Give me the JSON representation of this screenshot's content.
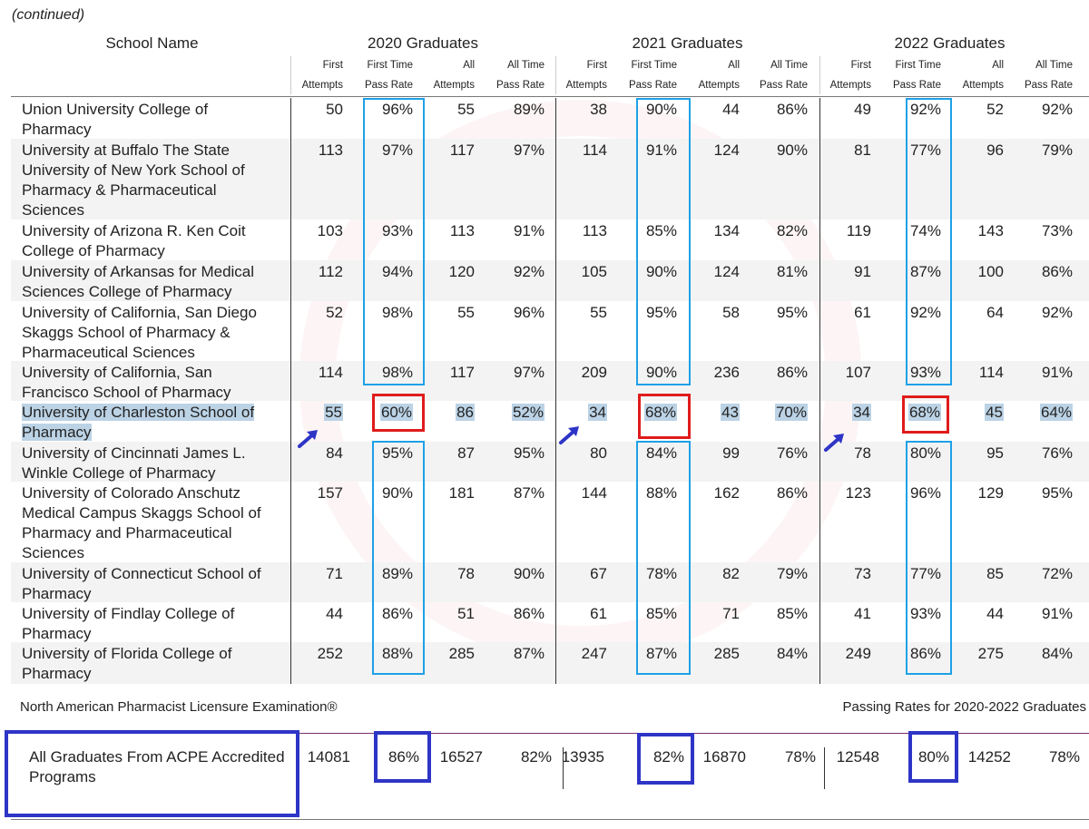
{
  "continued_label": "(continued)",
  "header": {
    "school_name": "School Name",
    "years": [
      "2020 Graduates",
      "2021 Graduates",
      "2022 Graduates"
    ],
    "sub": [
      {
        "l1": "First",
        "l2": "Attempts"
      },
      {
        "l1": "First Time",
        "l2": "Pass Rate"
      },
      {
        "l1": "All",
        "l2": "Attempts"
      },
      {
        "l1": "All Time",
        "l2": "Pass Rate"
      }
    ]
  },
  "rows": [
    {
      "name": "Union University College of Pharmacy",
      "vals": [
        "50",
        "96%",
        "55",
        "89%",
        "38",
        "90%",
        "44",
        "86%",
        "49",
        "92%",
        "52",
        "92%"
      ]
    },
    {
      "name": "University at Buffalo The State University of New York School of Pharmacy & Pharmaceutical Sciences",
      "vals": [
        "113",
        "97%",
        "117",
        "97%",
        "114",
        "91%",
        "124",
        "90%",
        "81",
        "77%",
        "96",
        "79%"
      ]
    },
    {
      "name": "University of Arizona R. Ken Coit College of Pharmacy",
      "vals": [
        "103",
        "93%",
        "113",
        "91%",
        "113",
        "85%",
        "134",
        "82%",
        "119",
        "74%",
        "143",
        "73%"
      ]
    },
    {
      "name": "University of Arkansas for Medical Sciences College of Pharmacy",
      "vals": [
        "112",
        "94%",
        "120",
        "92%",
        "105",
        "90%",
        "124",
        "81%",
        "91",
        "87%",
        "100",
        "86%"
      ]
    },
    {
      "name": "University of California, San Diego Skaggs School of Pharmacy & Pharmaceutical Sciences",
      "vals": [
        "52",
        "98%",
        "55",
        "96%",
        "55",
        "95%",
        "58",
        "95%",
        "61",
        "92%",
        "64",
        "92%"
      ]
    },
    {
      "name": "University of California, San Francisco School of Pharmacy",
      "vals": [
        "114",
        "98%",
        "117",
        "97%",
        "209",
        "90%",
        "236",
        "86%",
        "107",
        "93%",
        "114",
        "91%"
      ]
    },
    {
      "name": "University of Charleston School of Pharmacy",
      "vals": [
        "55",
        "60%",
        "86",
        "52%",
        "34",
        "68%",
        "43",
        "70%",
        "34",
        "68%",
        "45",
        "64%"
      ]
    },
    {
      "name": "University of Cincinnati James L. Winkle College of Pharmacy",
      "vals": [
        "84",
        "95%",
        "87",
        "95%",
        "80",
        "84%",
        "99",
        "76%",
        "78",
        "80%",
        "95",
        "76%"
      ]
    },
    {
      "name": "University of Colorado Anschutz Medical Campus Skaggs School of Pharmacy and Pharmaceutical Sciences",
      "vals": [
        "157",
        "90%",
        "181",
        "87%",
        "144",
        "88%",
        "162",
        "86%",
        "123",
        "96%",
        "129",
        "95%"
      ]
    },
    {
      "name": "University of Connecticut School of Pharmacy",
      "vals": [
        "71",
        "89%",
        "78",
        "90%",
        "67",
        "78%",
        "82",
        "79%",
        "73",
        "77%",
        "85",
        "72%"
      ]
    },
    {
      "name": "University of Findlay College of Pharmacy",
      "vals": [
        "44",
        "86%",
        "51",
        "86%",
        "61",
        "85%",
        "71",
        "85%",
        "41",
        "93%",
        "44",
        "91%"
      ]
    },
    {
      "name": "University of Florida College of Pharmacy",
      "vals": [
        "252",
        "88%",
        "285",
        "87%",
        "247",
        "87%",
        "285",
        "84%",
        "249",
        "86%",
        "275",
        "84%"
      ]
    }
  ],
  "footer": {
    "left": "North American Pharmacist Licensure Examination®",
    "right": "Passing Rates for 2020-2022 Graduates"
  },
  "summary": {
    "label": "All Graduates From ACPE Accredited Programs",
    "vals": [
      "14081",
      "86%",
      "16527",
      "82%",
      "13935",
      "82%",
      "16870",
      "78%",
      "12548",
      "80%",
      "14252",
      "78%"
    ]
  }
}
